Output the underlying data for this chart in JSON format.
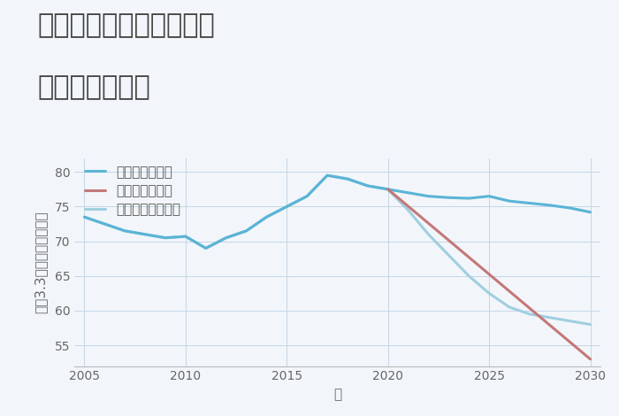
{
  "title_line1": "兵庫県西宮市津門川町の",
  "title_line2": "土地の価格推移",
  "xlabel": "年",
  "ylabel": "坪（3.3㎡）単価（万円）",
  "background_color": "#f2f6fa",
  "plot_bg_color": "#f2f6fa",
  "good_scenario": {
    "years": [
      2005,
      2006,
      2007,
      2008,
      2009,
      2010,
      2011,
      2012,
      2013,
      2014,
      2015,
      2016,
      2017,
      2018,
      2019,
      2020,
      2021,
      2022,
      2023,
      2024,
      2025,
      2026,
      2027,
      2028,
      2029,
      2030
    ],
    "values": [
      73.5,
      72.5,
      71.5,
      71.0,
      70.5,
      70.7,
      69.0,
      70.5,
      71.5,
      73.5,
      75.0,
      76.5,
      79.5,
      79.0,
      78.0,
      77.5,
      77.0,
      76.5,
      76.3,
      76.2,
      76.5,
      75.8,
      75.5,
      75.2,
      74.8,
      74.2
    ],
    "color": "#5ab4d6",
    "label": "グッドシナリオ",
    "linewidth": 2.2
  },
  "bad_scenario": {
    "years": [
      2020,
      2030
    ],
    "values": [
      77.5,
      53.0
    ],
    "color": "#c47878",
    "label": "バッドシナリオ",
    "linewidth": 2.2
  },
  "normal_scenario": {
    "years": [
      2005,
      2006,
      2007,
      2008,
      2009,
      2010,
      2011,
      2012,
      2013,
      2014,
      2015,
      2016,
      2017,
      2018,
      2019,
      2020,
      2021,
      2022,
      2023,
      2024,
      2025,
      2026,
      2027,
      2028,
      2029,
      2030
    ],
    "values": [
      73.5,
      72.5,
      71.5,
      71.0,
      70.5,
      70.7,
      69.0,
      70.5,
      71.5,
      73.5,
      75.0,
      76.5,
      79.5,
      79.0,
      78.0,
      77.5,
      74.5,
      71.0,
      68.0,
      65.0,
      62.5,
      60.5,
      59.5,
      59.0,
      58.5,
      58.0
    ],
    "color": "#a0cfe0",
    "label": "ノーマルシナリオ",
    "linewidth": 2.2
  },
  "ylim": [
    52,
    82
  ],
  "yticks": [
    55,
    60,
    65,
    70,
    75,
    80
  ],
  "xlim": [
    2004.5,
    2030.5
  ],
  "xticks": [
    2005,
    2010,
    2015,
    2020,
    2025,
    2030
  ],
  "title_fontsize": 22,
  "legend_fontsize": 11,
  "axis_fontsize": 11,
  "tick_fontsize": 10
}
